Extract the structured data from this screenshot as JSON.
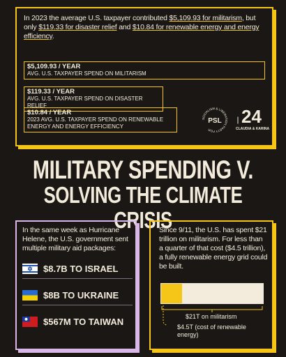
{
  "top_panel": {
    "text_parts": [
      "In 2023 the average U.S. taxpayer contributed ",
      "$5,109.93 for militarism",
      ", but only ",
      "$119.33 for disaster relief",
      " and ",
      "$10.84 for renewable energy and energy efficiency",
      "."
    ],
    "items": [
      {
        "amount": "$5,109.93 / YEAR",
        "label": "AVG. U.S. TAXPAYER SPEND ON MILITARISM"
      },
      {
        "amount": "$119.33 / YEAR",
        "label": "AVG. U.S. TAXPAYER SPEND ON DISASTER RELIEF"
      },
      {
        "amount": "$10.84 / YEAR",
        "label": "2023 AVG. U.S. TAXPAYER SPEND ON RENEWABLE ENERGY AND ENERGY EFFICIENCY"
      }
    ],
    "logos": {
      "party_ring": "SOCIALISM & LIBERATION PARTY FOR",
      "party_initials": "PSL",
      "campaign_names": "CLAUDIA & KARINA",
      "campaign_year": "24"
    }
  },
  "title": {
    "line1": "MILITARY SPENDING V.",
    "line2": "SOLVING THE CLIMATE CRISIS"
  },
  "left_card": {
    "intro": "In the same week as Hurricane Helene, the U.S. government sent multiple military aid packages:",
    "packages": [
      "$8.7B TO ISRAEL",
      "$8B TO UKRAINE",
      "$567M TO TAIWAN"
    ]
  },
  "right_card": {
    "text": "Since 9/11, the U.S. has spent $21 trillion on militarism. For less than a quarter of that cost ($4.5 trillion), a fully renewable energy grid could be built.",
    "bar_label": "$21T on militarism",
    "part_label": "$4.5T (cost of renewable energy)"
  }
}
